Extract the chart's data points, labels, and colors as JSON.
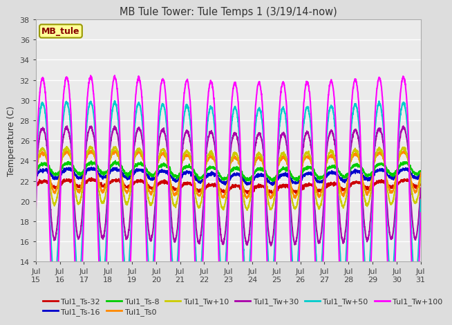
{
  "title": "MB Tule Tower: Tule Temps 1 (3/19/14-now)",
  "ylabel": "Temperature (C)",
  "ylim": [
    14,
    38
  ],
  "yticks": [
    14,
    16,
    18,
    20,
    22,
    24,
    26,
    28,
    30,
    32,
    34,
    36,
    38
  ],
  "xlabel_ticks": [
    "Jul 16",
    "Jul 17",
    "Jul 18",
    "Jul 19",
    "Jul 20",
    "Jul 21",
    "Jul 22",
    "Jul 23",
    "Jul 24",
    "Jul 25",
    "Jul 26",
    "Jul 27",
    "Jul 28",
    "Jul 29",
    "Jul 30",
    "Jul 31"
  ],
  "legend_label": "MB_tule",
  "series_order": [
    "Tul1_Ts-32",
    "Tul1_Ts-16",
    "Tul1_Ts-8",
    "Tul1_Ts0",
    "Tul1_Tw+10",
    "Tul1_Tw+30",
    "Tul1_Tw+50",
    "Tul1_Tw+100"
  ],
  "series": {
    "Tul1_Ts-32": {
      "color": "#cc0000",
      "lw": 1.5,
      "base": 21.5,
      "amplitude": 0.3,
      "phase": 0.0
    },
    "Tul1_Ts-16": {
      "color": "#0000cc",
      "lw": 1.5,
      "base": 22.5,
      "amplitude": 0.4,
      "phase": 0.0
    },
    "Tul1_Ts-8": {
      "color": "#00cc00",
      "lw": 1.5,
      "base": 23.0,
      "amplitude": 0.5,
      "phase": 0.0
    },
    "Tul1_Ts0": {
      "color": "#ff8800",
      "lw": 1.5,
      "base": 22.8,
      "amplitude": 1.8,
      "phase": 0.05
    },
    "Tul1_Tw+10": {
      "color": "#cccc00",
      "lw": 1.5,
      "base": 22.5,
      "amplitude": 2.5,
      "phase": 0.05
    },
    "Tul1_Tw+30": {
      "color": "#aa00aa",
      "lw": 1.5,
      "base": 22.0,
      "amplitude": 5.0,
      "phase": 0.05
    },
    "Tul1_Tw+50": {
      "color": "#00cccc",
      "lw": 1.5,
      "base": 21.5,
      "amplitude": 8.0,
      "phase": 0.05
    },
    "Tul1_Tw+100": {
      "color": "#ff00ff",
      "lw": 1.5,
      "base": 21.0,
      "amplitude": 11.0,
      "phase": 0.05
    }
  },
  "bg_color": "#dddddd",
  "plot_bg": "#ebebeb",
  "n_days": 16,
  "samples_per_day": 144
}
